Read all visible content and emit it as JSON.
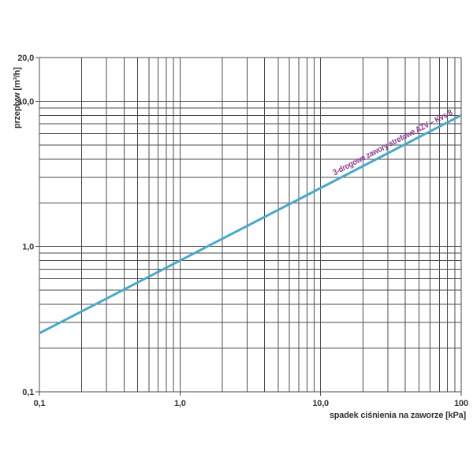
{
  "chart_data": {
    "type": "line",
    "title": "",
    "x_axis": {
      "label": "spadek ciśnienia na zaworze [kPa]",
      "scale": "log",
      "min": 0.1,
      "max": 100,
      "tick_values": [
        0.1,
        1,
        10,
        100
      ],
      "tick_labels": [
        "0,1",
        "1,0",
        "10,0",
        "100"
      ]
    },
    "y_axis": {
      "label": "przepływ [m³/h]",
      "scale": "log",
      "min": 0.1,
      "max": 20,
      "tick_values": [
        0.1,
        1,
        10,
        20
      ],
      "tick_labels": [
        "0,1",
        "1,0",
        "10,0",
        "20,0"
      ]
    },
    "grid": "log minor gridlines on, full frame",
    "legend_position": "label rotated along line",
    "colors": {
      "grid": "#4b4b4b",
      "axis_text": "#333333",
      "series_line": "#4aa8ca",
      "series_label": "#8a3a93"
    },
    "series": [
      {
        "name": "3-drogowe zawory strefowe AZV – Kvs 8",
        "kvs": 8,
        "color": "#4aa8ca",
        "label_color": "#8a3a93",
        "points": [
          {
            "dp_kPa": 0.1,
            "flow_m3h": 0.253
          },
          {
            "dp_kPa": 1,
            "flow_m3h": 0.8
          },
          {
            "dp_kPa": 10,
            "flow_m3h": 2.53
          },
          {
            "dp_kPa": 100,
            "flow_m3h": 8.0
          }
        ]
      }
    ]
  }
}
